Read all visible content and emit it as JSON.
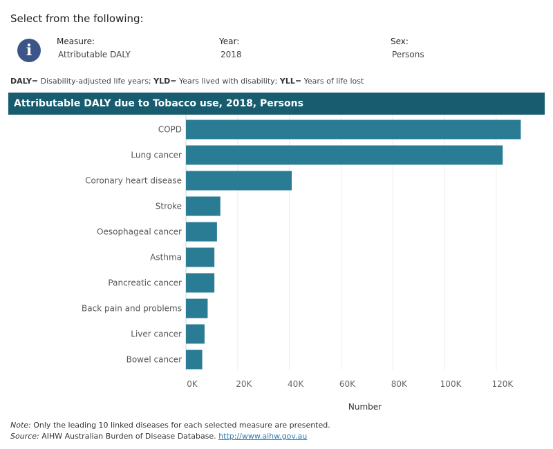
{
  "header": {
    "select_title": "Select from the following:"
  },
  "filters": {
    "measure": {
      "label": "Measure:",
      "value": "Attributable DALY"
    },
    "year": {
      "label": "Year:",
      "value": "2018"
    },
    "sex": {
      "label": "Sex:",
      "value": "Persons"
    }
  },
  "definitions": {
    "daly_key": "DALY",
    "daly_text": "= Disability-adjusted life years; ",
    "yld_key": "YLD",
    "yld_text": "= Years lived with disability; ",
    "yll_key": "YLL",
    "yll_text": "= Years of life lost"
  },
  "footer": {
    "note_label": "Note:",
    "note_text": " Only the leading 10 linked diseases for each selected measure are presented.",
    "source_label": "Source:",
    "source_text": " AIHW Australian Burden of Disease Database. ",
    "source_link": "http://www.aihw.gov.au"
  },
  "colors": {
    "bar": "#2a7b94",
    "header_bg": "#185c6f",
    "info_icon": "#3c5589"
  },
  "chart_data": {
    "type": "bar",
    "orientation": "horizontal",
    "title": "Attributable DALY due  to Tobacco use, 2018, Persons",
    "xlabel": "Number",
    "ylabel": "",
    "categories": [
      "COPD",
      "Lung cancer",
      "Coronary heart disease",
      "Stroke",
      "Oesophageal cancer",
      "Asthma",
      "Pancreatic cancer",
      "Back pain and problems",
      "Liver cancer",
      "Bowel cancer"
    ],
    "values": [
      129500,
      122500,
      40900,
      13300,
      12000,
      11000,
      11000,
      8400,
      7200,
      6300
    ],
    "xlim": [
      0,
      135000
    ],
    "ticks": [
      0,
      20000,
      40000,
      60000,
      80000,
      100000,
      120000
    ],
    "tick_labels": [
      "0K",
      "20K",
      "40K",
      "60K",
      "80K",
      "100K",
      "120K"
    ],
    "grid": "vertical"
  }
}
